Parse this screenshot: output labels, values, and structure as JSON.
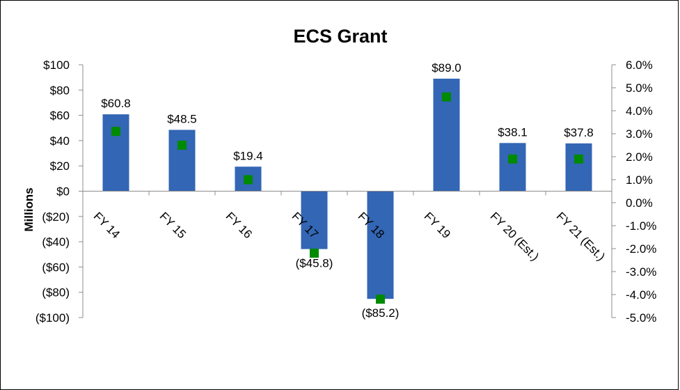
{
  "chart_data": {
    "type": "bar",
    "title": "ECS Grant",
    "ylabel": "Millions",
    "y2label": "",
    "categories": [
      "FY 14",
      "FY 15",
      "FY 16",
      "FY 17",
      "FY 18",
      "FY 19",
      "FY 20 (Est.)",
      "FY 21 (Est.)"
    ],
    "ylim": [
      -100,
      100
    ],
    "y2lim": [
      -5.0,
      6.0
    ],
    "yticks": [
      "$100",
      "$80",
      "$60",
      "$40",
      "$20",
      "$0",
      "($20)",
      "($40)",
      "($60)",
      "($80)",
      "($100)"
    ],
    "y2ticks": [
      "6.0%",
      "5.0%",
      "4.0%",
      "3.0%",
      "2.0%",
      "1.0%",
      "0.0%",
      "-1.0%",
      "-2.0%",
      "-3.0%",
      "-4.0%",
      "-5.0%"
    ],
    "series": [
      {
        "kind": "bar",
        "axis": "left",
        "color": "#3366b4",
        "values": [
          60.8,
          48.5,
          19.4,
          -45.8,
          -85.2,
          89.0,
          38.1,
          37.8
        ],
        "labels": [
          "$60.8",
          "$48.5",
          "$19.4",
          "($45.8)",
          "($85.2)",
          "$89.0",
          "$38.1",
          "$37.8"
        ]
      },
      {
        "kind": "marker",
        "axis": "right",
        "color": "#008a00",
        "values": [
          3.1,
          2.5,
          1.0,
          -2.2,
          -4.2,
          4.6,
          1.9,
          1.9
        ]
      }
    ],
    "grid": false,
    "legend": "none"
  }
}
